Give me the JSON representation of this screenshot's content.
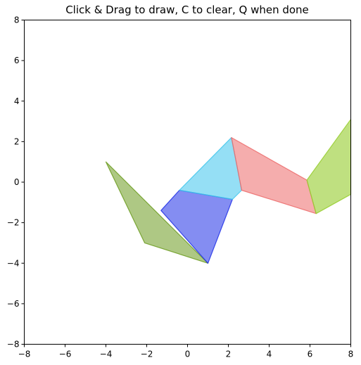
{
  "window": {
    "title": "Click & Drag to draw, C to clear, Q when done"
  },
  "chart_data": {
    "type": "polygon-drawing",
    "title": "Click & Drag to draw, C to clear, Q when done",
    "xlim": [
      -8,
      8
    ],
    "ylim": [
      -8,
      8
    ],
    "x_ticks": [
      -8,
      -6,
      -4,
      -2,
      0,
      2,
      4,
      6,
      8
    ],
    "y_ticks": [
      -8,
      -6,
      -4,
      -2,
      0,
      2,
      4,
      6,
      8
    ],
    "x_tick_labels": [
      "−8",
      "−6",
      "−4",
      "−2",
      "0",
      "2",
      "4",
      "6",
      "8"
    ],
    "y_tick_labels": [
      "−8",
      "−6",
      "−4",
      "−2",
      "0",
      "2",
      "4",
      "6",
      "8"
    ],
    "grid": false,
    "polygons": [
      {
        "color": "#6b9b1f",
        "fill_opacity": 0.55,
        "points": [
          [
            -4.0,
            1.0
          ],
          [
            -2.1,
            -3.0
          ],
          [
            1.0,
            -4.0
          ]
        ]
      },
      {
        "color": "#1f2fe8",
        "fill_opacity": 0.55,
        "points": [
          [
            -1.3,
            -1.4
          ],
          [
            -0.4,
            -0.4
          ],
          [
            2.2,
            -0.85
          ],
          [
            1.0,
            -4.0
          ]
        ]
      },
      {
        "color": "#3ec5ec",
        "fill_opacity": 0.55,
        "points": [
          [
            -0.4,
            -0.4
          ],
          [
            2.15,
            2.2
          ],
          [
            2.65,
            -0.4
          ],
          [
            2.2,
            -0.85
          ]
        ]
      },
      {
        "color": "#ec6a6a",
        "fill_opacity": 0.55,
        "points": [
          [
            2.15,
            2.2
          ],
          [
            5.85,
            0.1
          ],
          [
            6.3,
            -1.55
          ],
          [
            2.65,
            -0.4
          ]
        ]
      },
      {
        "color": "#95cc2c",
        "fill_opacity": 0.6,
        "points": [
          [
            5.85,
            0.1
          ],
          [
            8.0,
            3.1
          ],
          [
            8.0,
            -0.6
          ],
          [
            6.3,
            -1.55
          ]
        ]
      }
    ]
  }
}
